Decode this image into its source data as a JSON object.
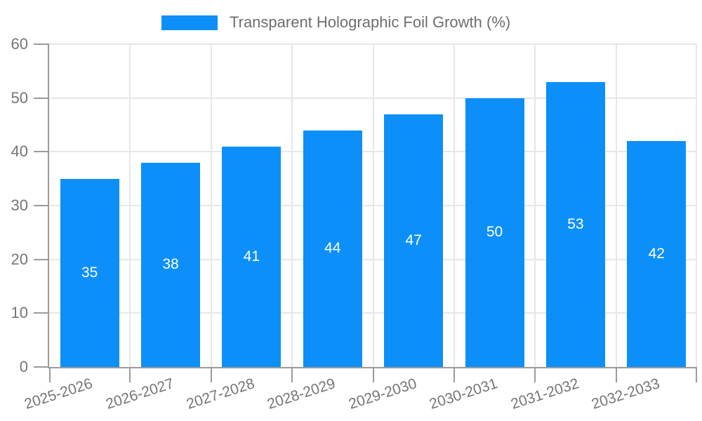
{
  "chart_data": {
    "type": "bar",
    "title": "Transparent Holographic Foil Growth (%)",
    "legend_position": "top",
    "categories": [
      "2025-2026",
      "2026-2027",
      "2027-2028",
      "2028-2029",
      "2029-2030",
      "2030-2031",
      "2031-2032",
      "2032-2033"
    ],
    "values": [
      35,
      38,
      41,
      44,
      47,
      50,
      53,
      42
    ],
    "xlabel": "",
    "ylabel": "",
    "ylim": [
      0,
      60
    ],
    "yticks": [
      0,
      10,
      20,
      30,
      40,
      50,
      60
    ],
    "grid": true,
    "x_label_rotation_deg": -18,
    "colors": {
      "bar": "#0d8ff9",
      "value_label": "#ffffff",
      "axis_text": "#757575",
      "legend_text": "#6e6e6e",
      "spine": "#9b9b9b",
      "gridline": "#e7e7e7",
      "background": "#ffffff"
    }
  }
}
